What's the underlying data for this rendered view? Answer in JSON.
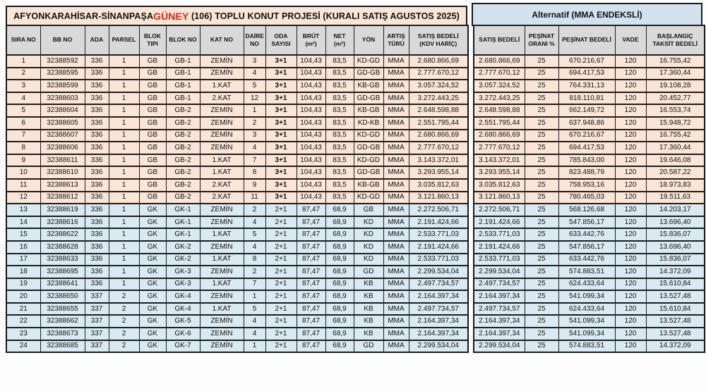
{
  "title": {
    "prefix": "AFYONKARAHİSAR-SİNANPAŞA",
    "highlight": "GÜNEY",
    "suffix": " (106) TOPLU KONUT PROJESİ (KURALI SATIŞ AGUSTOS 2025)"
  },
  "alternative_header": {
    "label": "Alternatif  (MMA ENDEKSLİ)"
  },
  "colors": {
    "title_highlight_red": "#d9261c",
    "group1_row_bg": "#fbe5d6",
    "group2_row_bg": "#daeaf2",
    "header_cell_bg": "#d9d9d9",
    "alternative_header_bg": "#d2e3ef"
  },
  "table": {
    "left_columns": [
      "SIRA NO",
      "BB NO",
      "ADA",
      "PARSEL",
      "BLOK TIPI",
      "BLOK NO",
      "KAT NO",
      "DAİRE NO",
      "ODA SAYISI",
      "BRÜT (m²)",
      "NET (m²)",
      "YÖN",
      "ARTIŞ TÜRÜ",
      "SATIŞ BEDELİ (KDV HARİÇ)"
    ],
    "right_columns": [
      "SATIŞ BEDELİ",
      "PEŞİNAT ORANI %",
      "PEŞİNAT BEDELİ",
      "VADE",
      "BAŞLANGIÇ TAKSİT BEDELİ"
    ],
    "rows": [
      [
        "1",
        "32388592",
        "336",
        "1",
        "GB",
        "GB-1",
        "ZEMİN",
        "3",
        "3+1",
        "104,43",
        "83,5",
        "KD-GD",
        "MMA",
        "2.680.866,69",
        "2.680.866,69",
        "25",
        "670.216,67",
        "120",
        "16.755,42"
      ],
      [
        "2",
        "32388595",
        "336",
        "1",
        "GB",
        "GB-1",
        "ZEMİN",
        "4",
        "3+1",
        "104,43",
        "83,5",
        "GD-GB",
        "MMA",
        "2.777.670,12",
        "2.777.670,12",
        "25",
        "694.417,53",
        "120",
        "17.360,44"
      ],
      [
        "3",
        "32388599",
        "336",
        "1",
        "GB",
        "GB-1",
        "1.KAT",
        "5",
        "3+1",
        "104,43",
        "83,5",
        "KB-GB",
        "MMA",
        "3.057.324,52",
        "3.057.324,52",
        "25",
        "764.331,13",
        "120",
        "19.108,28"
      ],
      [
        "4",
        "32388603",
        "336",
        "1",
        "GB",
        "GB-1",
        "2.KAT",
        "12",
        "3+1",
        "104,43",
        "83,5",
        "GD-GB",
        "MMA",
        "3.272.443,25",
        "3.272.443,25",
        "25",
        "818.110,81",
        "120",
        "20.452,77"
      ],
      [
        "5",
        "32388604",
        "336",
        "1",
        "GB",
        "GB-2",
        "ZEMİN",
        "1",
        "3+1",
        "104,43",
        "83,5",
        "KB-GB",
        "MMA",
        "2.648.598,88",
        "2.648.598,88",
        "25",
        "662.149,72",
        "120",
        "16.553,74"
      ],
      [
        "6",
        "32388605",
        "336",
        "1",
        "GB",
        "GB-2",
        "ZEMİN",
        "2",
        "3+1",
        "104,43",
        "83,5",
        "KD-KB",
        "MMA",
        "2.551.795,44",
        "2.551.795,44",
        "25",
        "637.948,86",
        "120",
        "15.948,72"
      ],
      [
        "7",
        "32388607",
        "336",
        "1",
        "GB",
        "GB-2",
        "ZEMİN",
        "3",
        "3+1",
        "104,43",
        "83,5",
        "KD-GD",
        "MMA",
        "2.680.866,69",
        "2.680.866,69",
        "25",
        "670.216,67",
        "120",
        "16.755,42"
      ],
      [
        "8",
        "32388606",
        "336",
        "1",
        "GB",
        "GB-2",
        "ZEMİN",
        "4",
        "3+1",
        "104,43",
        "83,5",
        "GD-GB",
        "MMA",
        "2.777.670,12",
        "2.777.670,12",
        "25",
        "694.417,53",
        "120",
        "17.360,44"
      ],
      [
        "9",
        "32388611",
        "336",
        "1",
        "GB",
        "GB-2",
        "1.KAT",
        "7",
        "3+1",
        "104,43",
        "83,5",
        "KD-GD",
        "MMA",
        "3.143.372,01",
        "3.143.372,01",
        "25",
        "785.843,00",
        "120",
        "19.646,08"
      ],
      [
        "10",
        "32388610",
        "336",
        "1",
        "GB",
        "GB-2",
        "1.KAT",
        "8",
        "3+1",
        "104,43",
        "83,5",
        "GD-GB",
        "MMA",
        "3.293.955,14",
        "3.293.955,14",
        "25",
        "823.488,79",
        "120",
        "20.587,22"
      ],
      [
        "11",
        "32388613",
        "336",
        "1",
        "GB",
        "GB-2",
        "2.KAT",
        "9",
        "3+1",
        "104,43",
        "83,5",
        "KB-GB",
        "MMA",
        "3.035.812,63",
        "3.035.812,63",
        "25",
        "758.953,16",
        "120",
        "18.973,83"
      ],
      [
        "12",
        "32388612",
        "336",
        "1",
        "GB",
        "GB-2",
        "2.KAT",
        "11",
        "3+1",
        "104,43",
        "83,5",
        "KD-GD",
        "MMA",
        "3.121.860,13",
        "3.121.860,13",
        "25",
        "780.465,03",
        "120",
        "19.511,63"
      ],
      [
        "13",
        "32388619",
        "336",
        "1",
        "GK",
        "GK-1",
        "ZEMİN",
        "2",
        "2+1",
        "87,47",
        "68,9",
        "GB",
        "MMA",
        "2.272.506,71",
        "2.272.506,71",
        "25",
        "568.126,68",
        "120",
        "14.203,17"
      ],
      [
        "14",
        "32388616",
        "336",
        "1",
        "GK",
        "GK-1",
        "ZEMİN",
        "4",
        "2+1",
        "87,47",
        "68,9",
        "KD",
        "MMA",
        "2.191.424,66",
        "2.191.424,66",
        "25",
        "547.856,17",
        "120",
        "13.696,40"
      ],
      [
        "15",
        "32388622",
        "336",
        "1",
        "GK",
        "GK-1",
        "1.KAT",
        "5",
        "2+1",
        "87,47",
        "68,9",
        "KD",
        "MMA",
        "2.533.771,03",
        "2.533.771,03",
        "25",
        "633.442,76",
        "120",
        "15.836,07"
      ],
      [
        "16",
        "32388628",
        "336",
        "1",
        "GK",
        "GK-2",
        "ZEMİN",
        "4",
        "2+1",
        "87,47",
        "68,9",
        "KD",
        "MMA",
        "2.191.424,66",
        "2.191.424,66",
        "25",
        "547.856,17",
        "120",
        "13.696,40"
      ],
      [
        "17",
        "32388633",
        "336",
        "1",
        "GK",
        "GK-2",
        "1.KAT",
        "8",
        "2+1",
        "87,47",
        "68,9",
        "KD",
        "MMA",
        "2.533.771,03",
        "2.533.771,03",
        "25",
        "633.442,76",
        "120",
        "15.836,07"
      ],
      [
        "18",
        "32388695",
        "336",
        "1",
        "GK",
        "GK-3",
        "ZEMİN",
        "2",
        "2+1",
        "87,47",
        "68,9",
        "GD",
        "MMA",
        "2.299.534,04",
        "2.299.534,04",
        "25",
        "574.883,51",
        "120",
        "14.372,09"
      ],
      [
        "19",
        "32388641",
        "336",
        "1",
        "GK",
        "GK-3",
        "1.KAT",
        "7",
        "2+1",
        "87,47",
        "68,9",
        "KB",
        "MMA",
        "2.497.734,57",
        "2.497.734,57",
        "25",
        "624.433,64",
        "120",
        "15.610,84"
      ],
      [
        "20",
        "32388650",
        "337",
        "2",
        "GK",
        "GK-4",
        "ZEMİN",
        "1",
        "2+1",
        "87,47",
        "68,9",
        "KB",
        "MMA",
        "2.164.397,34",
        "2.164.397,34",
        "25",
        "541.099,34",
        "120",
        "13.527,48"
      ],
      [
        "21",
        "32388655",
        "337",
        "2",
        "GK",
        "GK-4",
        "1.KAT",
        "5",
        "2+1",
        "87,47",
        "68,9",
        "KB",
        "MMA",
        "2.497.734,57",
        "2.497.734,57",
        "25",
        "624.433,64",
        "120",
        "15.610,84"
      ],
      [
        "22",
        "32388662",
        "337",
        "2",
        "GK",
        "GK-5",
        "ZEMİN",
        "4",
        "2+1",
        "87,47",
        "68,9",
        "KB",
        "MMA",
        "2.164.397,34",
        "2.164.397,34",
        "25",
        "541.099,34",
        "120",
        "13.527,48"
      ],
      [
        "23",
        "32388673",
        "337",
        "2",
        "GK",
        "GK-6",
        "ZEMİN",
        "4",
        "2+1",
        "87,47",
        "68,9",
        "KB",
        "MMA",
        "2.164.397,34",
        "2.164.397,34",
        "25",
        "541.099,34",
        "120",
        "13.527,48"
      ],
      [
        "24",
        "32388685",
        "337",
        "2",
        "GK",
        "GK-7",
        "ZEMİN",
        "1",
        "2+1",
        "87,47",
        "68,9",
        "GD",
        "MMA",
        "2.299.534,04",
        "2.299.534,04",
        "25",
        "574.883,51",
        "120",
        "14.372,09"
      ]
    ]
  }
}
